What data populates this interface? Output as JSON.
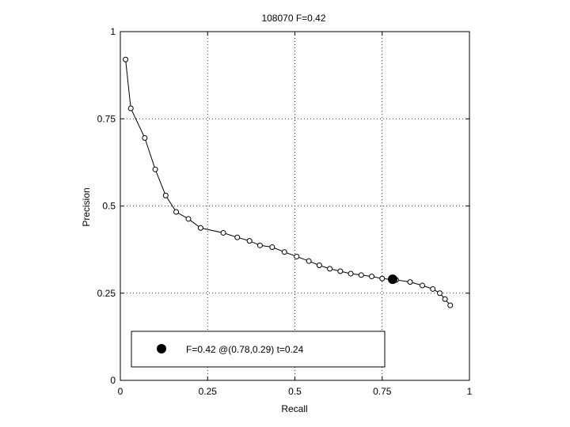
{
  "chart_data": {
    "type": "line",
    "title": "108070 F=0.42",
    "xlabel": "Recall",
    "ylabel": "Precision",
    "xlim": [
      0,
      1
    ],
    "ylim": [
      0,
      1
    ],
    "grid": true,
    "x_ticks": [
      {
        "value": 0,
        "label": "0"
      },
      {
        "value": 0.25,
        "label": "0.25"
      },
      {
        "value": 0.5,
        "label": "0.5"
      },
      {
        "value": 0.75,
        "label": "0.75"
      },
      {
        "value": 1,
        "label": "1"
      }
    ],
    "y_ticks": [
      {
        "value": 0,
        "label": "0"
      },
      {
        "value": 0.25,
        "label": "0.25"
      },
      {
        "value": 0.5,
        "label": "0.5"
      },
      {
        "value": 0.75,
        "label": "0.75"
      },
      {
        "value": 1,
        "label": "1"
      }
    ],
    "series": [
      {
        "color": "#000000",
        "marker": "open-circle",
        "points": [
          [
            0.015,
            0.92
          ],
          [
            0.03,
            0.78
          ],
          [
            0.07,
            0.695
          ],
          [
            0.1,
            0.605
          ],
          [
            0.13,
            0.53
          ],
          [
            0.16,
            0.483
          ],
          [
            0.195,
            0.463
          ],
          [
            0.23,
            0.437
          ],
          [
            0.295,
            0.423
          ],
          [
            0.335,
            0.41
          ],
          [
            0.37,
            0.4
          ],
          [
            0.4,
            0.387
          ],
          [
            0.435,
            0.382
          ],
          [
            0.47,
            0.368
          ],
          [
            0.505,
            0.355
          ],
          [
            0.54,
            0.342
          ],
          [
            0.57,
            0.33
          ],
          [
            0.6,
            0.32
          ],
          [
            0.63,
            0.313
          ],
          [
            0.66,
            0.306
          ],
          [
            0.69,
            0.302
          ],
          [
            0.72,
            0.298
          ],
          [
            0.75,
            0.292
          ],
          [
            0.79,
            0.288
          ],
          [
            0.83,
            0.282
          ],
          [
            0.865,
            0.272
          ],
          [
            0.895,
            0.262
          ],
          [
            0.915,
            0.25
          ],
          [
            0.93,
            0.233
          ],
          [
            0.945,
            0.215
          ]
        ]
      }
    ],
    "highlight": {
      "x": 0.78,
      "y": 0.29,
      "color": "#000000",
      "marker": "filled-circle"
    },
    "legend": {
      "placement": "bottom-left",
      "label": "F=0.42 @(0.78,0.29) t=0.24"
    }
  }
}
